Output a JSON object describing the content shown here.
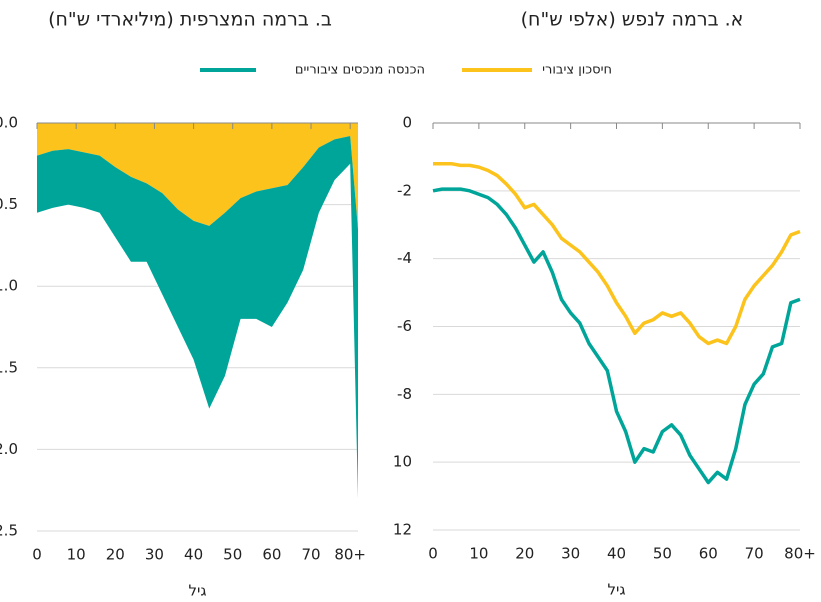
{
  "chart_data": [
    {
      "type": "line",
      "title": "א. ברמה לנפש (אלפי ש\"ח)",
      "xlabel": "גיל",
      "x": [
        0,
        2,
        4,
        6,
        8,
        10,
        12,
        14,
        16,
        18,
        20,
        22,
        24,
        26,
        28,
        30,
        32,
        34,
        36,
        38,
        40,
        42,
        44,
        46,
        48,
        50,
        52,
        54,
        56,
        58,
        60,
        62,
        64,
        66,
        68,
        70,
        72,
        74,
        76,
        78,
        80
      ],
      "series": [
        {
          "name": "חיסכון ציבורי",
          "color": "#fbc31c",
          "values": [
            -1.2,
            -1.2,
            -1.2,
            -1.25,
            -1.25,
            -1.3,
            -1.4,
            -1.55,
            -1.8,
            -2.1,
            -2.5,
            -2.4,
            -2.7,
            -3.0,
            -3.4,
            -3.6,
            -3.8,
            -4.1,
            -4.4,
            -4.8,
            -5.3,
            -5.7,
            -6.2,
            -5.9,
            -5.8,
            -5.6,
            -5.7,
            -5.6,
            -5.9,
            -6.3,
            -6.5,
            -6.4,
            -6.5,
            -6.0,
            -5.2,
            -4.8,
            -4.5,
            -4.2,
            -3.8,
            -3.3,
            -3.2
          ]
        },
        {
          "name": "הכנסה מנכסים ציבוריים",
          "color": "#00a59a",
          "values": [
            -2.0,
            -1.95,
            -1.95,
            -1.95,
            -2.0,
            -2.1,
            -2.2,
            -2.4,
            -2.7,
            -3.1,
            -3.6,
            -4.1,
            -3.8,
            -4.4,
            -5.2,
            -5.6,
            -5.9,
            -6.5,
            -6.9,
            -7.3,
            -8.5,
            -9.1,
            -10.0,
            -9.6,
            -9.7,
            -9.1,
            -8.9,
            -9.2,
            -9.8,
            -10.2,
            -10.6,
            -10.3,
            -10.5,
            -9.6,
            -8.3,
            -7.7,
            -7.4,
            -6.6,
            -6.5,
            -5.3,
            -5.2
          ]
        }
      ],
      "xlim": [
        0,
        80
      ],
      "xticks": [
        0,
        10,
        20,
        30,
        40,
        50,
        60,
        70,
        {
          "value": 80,
          "label": "80+"
        }
      ],
      "ylim": [
        -12,
        0
      ],
      "yticks": [
        0,
        -2,
        -4,
        -6,
        -8,
        {
          "value": -10,
          "label": "10"
        },
        {
          "value": -12,
          "label": "12"
        }
      ],
      "grid": true
    },
    {
      "type": "area",
      "title": "ב. ברמה המצרפית (מיליארדי ש\"ח)",
      "xlabel": "גיל",
      "x": [
        0,
        4,
        8,
        12,
        16,
        20,
        24,
        28,
        32,
        36,
        40,
        44,
        48,
        52,
        56,
        60,
        64,
        68,
        72,
        76,
        80,
        82
      ],
      "series": [
        {
          "color": "#fbc31c",
          "values": [
            -0.2,
            -0.17,
            -0.16,
            -0.18,
            -0.2,
            -0.27,
            -0.33,
            -0.37,
            -0.43,
            -0.53,
            -0.6,
            -0.63,
            -0.55,
            -0.46,
            -0.42,
            -0.4,
            -0.38,
            -0.27,
            -0.15,
            -0.1,
            -0.08,
            -0.65
          ]
        },
        {
          "color": "#00a59a",
          "values": [
            -0.35,
            -0.35,
            -0.34,
            -0.34,
            -0.35,
            -0.43,
            -0.52,
            -0.48,
            -0.62,
            -0.72,
            -0.85,
            -1.12,
            -1.0,
            -0.74,
            -0.78,
            -0.85,
            -0.72,
            -0.63,
            -0.4,
            -0.25,
            -0.17,
            -1.65
          ]
        }
      ],
      "xlim": [
        0,
        82
      ],
      "xticks": [
        0,
        10,
        20,
        30,
        40,
        50,
        60,
        70,
        {
          "value": 80,
          "label": "80+"
        }
      ],
      "ylim": [
        -2.5,
        0
      ],
      "yticks": [
        {
          "value": 0,
          "label": "0.0"
        },
        {
          "value": -0.5,
          "label": "0.5"
        },
        {
          "value": -1,
          "label": "1.0"
        },
        {
          "value": -1.5,
          "label": "1.5"
        },
        {
          "value": -2,
          "label": "2.0"
        },
        {
          "value": -2.5,
          "label": "2.5"
        }
      ],
      "grid": true
    }
  ]
}
